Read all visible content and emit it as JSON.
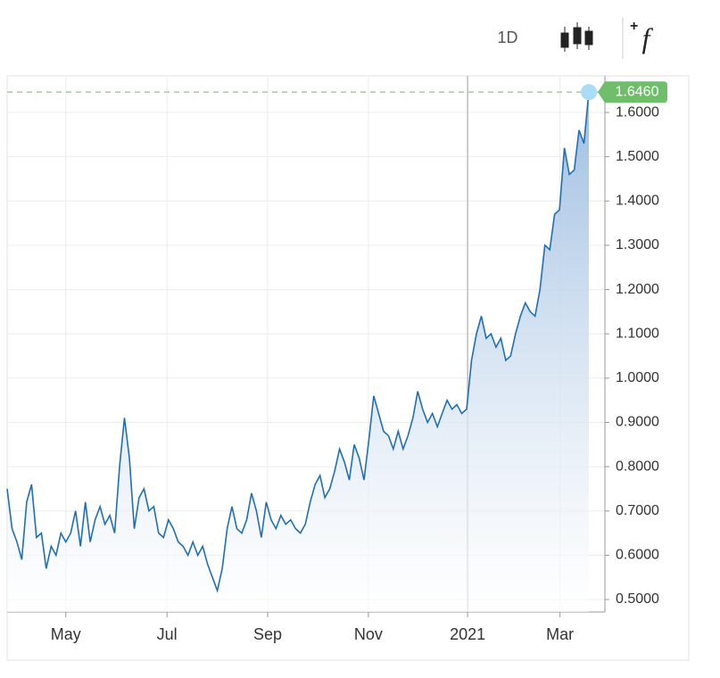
{
  "toolbar": {
    "interval": "1D"
  },
  "chart_data": {
    "type": "area-line",
    "color": "#1f6fb2",
    "values": [
      0.75,
      0.66,
      0.63,
      0.59,
      0.72,
      0.76,
      0.64,
      0.65,
      0.57,
      0.62,
      0.6,
      0.65,
      0.63,
      0.65,
      0.7,
      0.62,
      0.72,
      0.63,
      0.68,
      0.71,
      0.67,
      0.69,
      0.65,
      0.8,
      0.91,
      0.82,
      0.66,
      0.73,
      0.75,
      0.7,
      0.71,
      0.65,
      0.64,
      0.68,
      0.66,
      0.63,
      0.62,
      0.6,
      0.63,
      0.6,
      0.62,
      0.58,
      0.55,
      0.52,
      0.57,
      0.66,
      0.71,
      0.66,
      0.65,
      0.68,
      0.74,
      0.7,
      0.64,
      0.72,
      0.68,
      0.66,
      0.69,
      0.67,
      0.68,
      0.66,
      0.65,
      0.67,
      0.72,
      0.76,
      0.78,
      0.73,
      0.75,
      0.79,
      0.84,
      0.81,
      0.77,
      0.85,
      0.82,
      0.77,
      0.86,
      0.96,
      0.92,
      0.88,
      0.87,
      0.84,
      0.88,
      0.84,
      0.87,
      0.91,
      0.97,
      0.93,
      0.9,
      0.92,
      0.89,
      0.92,
      0.95,
      0.93,
      0.94,
      0.92,
      0.93,
      1.04,
      1.1,
      1.14,
      1.09,
      1.1,
      1.07,
      1.09,
      1.04,
      1.05,
      1.1,
      1.14,
      1.17,
      1.15,
      1.14,
      1.2,
      1.3,
      1.29,
      1.37,
      1.38,
      1.52,
      1.46,
      1.47,
      1.56,
      1.53,
      1.646
    ],
    "last_value": {
      "value": 1.646,
      "label": "1.6460"
    },
    "xlim": [
      0,
      119
    ],
    "xticks": [
      {
        "value": 12,
        "label": "May"
      },
      {
        "value": 32.7,
        "label": "Jul"
      },
      {
        "value": 53.3,
        "label": "Sep"
      },
      {
        "value": 73.9,
        "label": "Nov"
      },
      {
        "value": 94.2,
        "label": "2021"
      },
      {
        "value": 113.1,
        "label": "Mar"
      }
    ],
    "ylim": [
      0.4718,
      1.6827
    ],
    "yticks": [
      {
        "value": 0.5,
        "label": "0.5000"
      },
      {
        "value": 0.6,
        "label": "0.6000"
      },
      {
        "value": 0.7,
        "label": "0.7000"
      },
      {
        "value": 0.8,
        "label": "0.8000"
      },
      {
        "value": 0.9,
        "label": "0.9000"
      },
      {
        "value": 1.0,
        "label": "1.0000"
      },
      {
        "value": 1.1,
        "label": "1.1000"
      },
      {
        "value": 1.2,
        "label": "1.2000"
      },
      {
        "value": 1.3,
        "label": "1.3000"
      },
      {
        "value": 1.4,
        "label": "1.4000"
      },
      {
        "value": 1.5,
        "label": "1.5000"
      },
      {
        "value": 1.6,
        "label": "1.6000"
      }
    ],
    "grid": true
  }
}
